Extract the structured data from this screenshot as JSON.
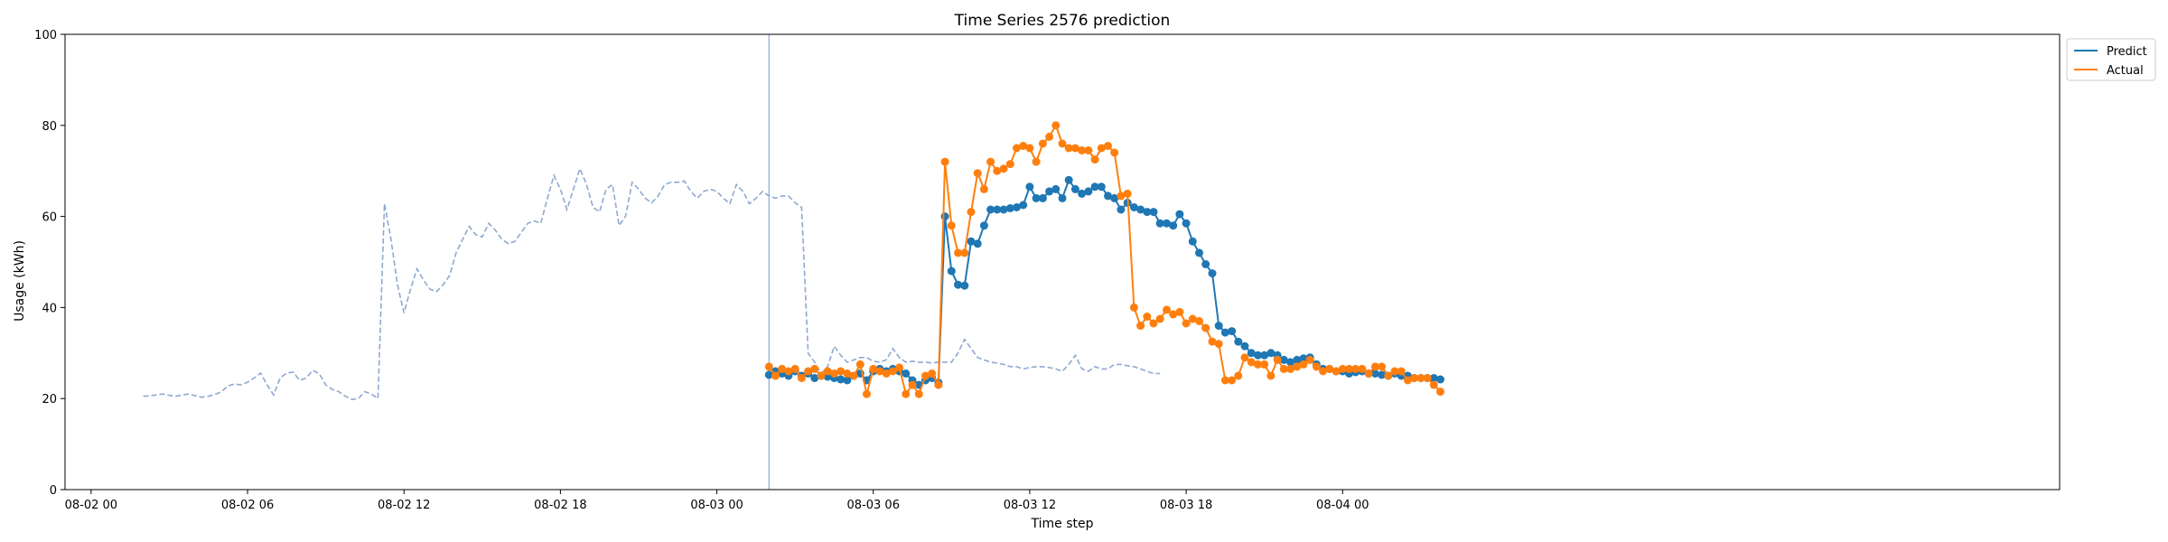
{
  "chart_data": {
    "type": "line",
    "title": "Time Series 2576 prediction",
    "xlabel": "Time step",
    "ylabel": "Usage (kWh)",
    "ylim": [
      0,
      100
    ],
    "xlim_hours": [
      -1,
      75.5
    ],
    "yticks": [
      0,
      20,
      40,
      60,
      80,
      100
    ],
    "xticks": [
      {
        "hour": 0,
        "label": "08-02 00"
      },
      {
        "hour": 6,
        "label": "08-02 06"
      },
      {
        "hour": 12,
        "label": "08-02 12"
      },
      {
        "hour": 18,
        "label": "08-02 18"
      },
      {
        "hour": 24,
        "label": "08-03 00"
      },
      {
        "hour": 30,
        "label": "08-03 06"
      },
      {
        "hour": 36,
        "label": "08-03 12"
      },
      {
        "hour": 42,
        "label": "08-03 18"
      },
      {
        "hour": 48,
        "label": "08-04 00"
      }
    ],
    "forecast_start_hour": 26,
    "step_hours": 0.25,
    "history": {
      "start_hour": 2,
      "step_hours": 0.25,
      "values": [
        20.5,
        20.6,
        20.8,
        21.0,
        20.7,
        20.5,
        20.8,
        21.0,
        20.6,
        20.3,
        20.5,
        20.9,
        21.5,
        22.8,
        23.2,
        23.0,
        23.6,
        24.5,
        25.6,
        23.0,
        20.8,
        24.5,
        25.6,
        25.8,
        24.0,
        24.5,
        26.2,
        25.5,
        23.0,
        22.0,
        21.5,
        20.5,
        19.8,
        20.0,
        21.5,
        21.0,
        20.0,
        62.8,
        55.0,
        45.0,
        38.8,
        44.0,
        48.5,
        46.0,
        44.0,
        43.5,
        45.0,
        47.0,
        52.0,
        55.0,
        57.8,
        56.0,
        55.5,
        58.5,
        57.0,
        55.0,
        54.0,
        54.5,
        56.5,
        58.5,
        59.0,
        58.5,
        64.0,
        69.0,
        66.0,
        61.5,
        66.0,
        70.5,
        67.0,
        62.0,
        61.0,
        66.0,
        67.0,
        58.0,
        60.0,
        67.5,
        66.0,
        64.0,
        63.0,
        64.5,
        67.0,
        67.5,
        67.5,
        67.8,
        65.5,
        64.0,
        65.5,
        66.0,
        65.5,
        64.0,
        62.8,
        67.0,
        65.5,
        62.8,
        64.0,
        65.5,
        64.5,
        64.0,
        64.5,
        64.5,
        63.0,
        62.0,
        30.0,
        28.0,
        25.5,
        27.0,
        31.5,
        29.5,
        28.0,
        28.5,
        29.0,
        29.0,
        28.2,
        28.0,
        28.5,
        31.0,
        29.0,
        28.0,
        28.2,
        28.0,
        28.0,
        27.8,
        28.0,
        28.0,
        28.0,
        30.0,
        33.0,
        31.0,
        29.0,
        28.5,
        28.0,
        27.8,
        27.5,
        27.0,
        27.0,
        26.5,
        26.8,
        27.0,
        27.0,
        26.8,
        26.5,
        26.0,
        27.5,
        29.5,
        26.5,
        26.0,
        27.0,
        26.5,
        26.5,
        27.5,
        27.5,
        27.2,
        27.0,
        26.5,
        26.0,
        25.5,
        25.5
      ]
    },
    "series": [
      {
        "name": "Predict",
        "color": "#1f77b4",
        "values": [
          25.2,
          26.0,
          25.5,
          25.0,
          26.0,
          25.0,
          25.5,
          24.5,
          25.0,
          24.8,
          24.5,
          24.2,
          24.0,
          25.0,
          25.5,
          24.0,
          26.0,
          26.5,
          26.0,
          26.5,
          26.0,
          25.5,
          24.0,
          23.0,
          24.0,
          24.5,
          23.5,
          60.0,
          48.0,
          45.0,
          44.8,
          54.5,
          54.0,
          58.0,
          61.5,
          61.5,
          61.5,
          61.8,
          62.0,
          62.5,
          66.5,
          64.0,
          64.0,
          65.5,
          66.0,
          64.0,
          68.0,
          66.0,
          65.0,
          65.5,
          66.5,
          66.5,
          64.5,
          64.0,
          61.5,
          63.0,
          62.0,
          61.5,
          61.0,
          61.0,
          58.5,
          58.5,
          58.0,
          60.5,
          58.5,
          54.5,
          52.0,
          49.5,
          47.5,
          36.0,
          34.5,
          34.8,
          32.5,
          31.5,
          30.0,
          29.5,
          29.5,
          30.0,
          29.5,
          28.5,
          28.0,
          28.5,
          28.8,
          29.0,
          27.5,
          26.5,
          26.5,
          26.0,
          26.0,
          25.5,
          25.8,
          26.0,
          25.5,
          25.5,
          25.2,
          25.0,
          25.5,
          25.0,
          25.0,
          24.5,
          24.5,
          24.5,
          24.5,
          24.2
        ]
      },
      {
        "name": "Actual",
        "color": "#ff7f0e",
        "values": [
          27.0,
          25.0,
          26.5,
          26.0,
          26.5,
          24.5,
          26.0,
          26.5,
          25.0,
          26.0,
          25.5,
          26.0,
          25.5,
          25.0,
          27.5,
          21.0,
          26.5,
          26.0,
          25.5,
          26.0,
          26.8,
          21.0,
          23.0,
          21.0,
          25.0,
          25.5,
          23.0,
          72.0,
          58.0,
          52.0,
          52.0,
          61.0,
          69.5,
          66.0,
          72.0,
          70.0,
          70.5,
          71.5,
          75.0,
          75.5,
          75.0,
          72.0,
          76.0,
          77.5,
          80.0,
          76.0,
          75.0,
          75.0,
          74.5,
          74.5,
          72.5,
          75.0,
          75.5,
          74.0,
          64.5,
          65.0,
          40.0,
          36.0,
          38.0,
          36.5,
          37.5,
          39.5,
          38.5,
          39.0,
          36.5,
          37.5,
          37.0,
          35.5,
          32.5,
          32.0,
          24.0,
          24.0,
          25.0,
          29.0,
          28.0,
          27.5,
          27.5,
          25.0,
          28.5,
          26.5,
          26.5,
          27.0,
          27.5,
          28.5,
          27.0,
          26.0,
          26.5,
          26.0,
          26.5,
          26.5,
          26.5,
          26.5,
          25.5,
          27.0,
          27.0,
          25.0,
          26.0,
          26.0,
          24.0,
          24.5,
          24.5,
          24.5,
          23.0,
          21.5
        ]
      }
    ],
    "legend": {
      "position": "outside-top-right",
      "entries": [
        "Predict",
        "Actual"
      ]
    },
    "history_color": "#8fa9cf",
    "forecast_line_color": "#8fa9cf"
  }
}
